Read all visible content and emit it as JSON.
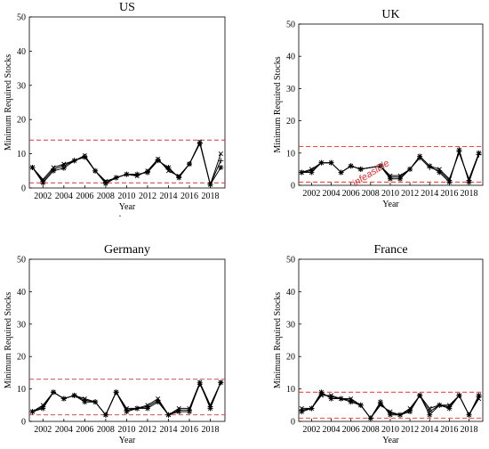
{
  "figure": {
    "stray_mark": "."
  },
  "chart_data": [
    {
      "type": "line",
      "title": "US",
      "xlabel": "Year",
      "ylabel": "Minimum Required Stocks",
      "xlim": [
        2000.7,
        2019.4
      ],
      "ylim": [
        0,
        50
      ],
      "xticks": [
        "2002",
        "2004",
        "2006",
        "2008",
        "2010",
        "2012",
        "2014",
        "2016",
        "2018"
      ],
      "yticks": [
        "0",
        "10",
        "20",
        "30",
        "40",
        "50"
      ],
      "x": [
        2001,
        2002,
        2003,
        2004,
        2005,
        2006,
        2007,
        2008,
        2009,
        2010,
        2011,
        2012,
        2013,
        2014,
        2015,
        2016,
        2017,
        2018,
        2019
      ],
      "series": [
        {
          "values": [
            6,
            1.5,
            5,
            5.8,
            8,
            9,
            5,
            1.3,
            3,
            4,
            4,
            4.5,
            8,
            6,
            3,
            7,
            13,
            1,
            6
          ]
        },
        {
          "values": [
            6,
            2.5,
            6,
            7,
            8,
            9.5,
            5,
            2,
            3,
            4,
            3.5,
            5,
            8.5,
            5,
            3.5,
            7,
            13.5,
            1,
            10
          ]
        },
        {
          "values": [
            6,
            2,
            5.5,
            6.5,
            8,
            9.2,
            5,
            1.6,
            3,
            4,
            3.8,
            4.8,
            8.2,
            5.5,
            3.2,
            7,
            13.2,
            1,
            8
          ]
        }
      ],
      "reference_lines": [
        14,
        1.5
      ],
      "annotations": [],
      "colors": {
        "series": "#000000",
        "reference": "#e03030"
      }
    },
    {
      "type": "line",
      "title": "UK",
      "xlabel": "Year",
      "ylabel": "Minimum Required Stocks",
      "xlim": [
        2000.7,
        2019.4
      ],
      "ylim": [
        0,
        50
      ],
      "xticks": [
        "2002",
        "2004",
        "2006",
        "2008",
        "2010",
        "2012",
        "2014",
        "2016",
        "2018"
      ],
      "yticks": [
        "0",
        "10",
        "20",
        "30",
        "40",
        "50"
      ],
      "x": [
        2001,
        2002,
        2003,
        2004,
        2005,
        2006,
        2007,
        2009,
        2010,
        2011,
        2012,
        2013,
        2014,
        2015,
        2016,
        2017,
        2018,
        2019
      ],
      "series": [
        {
          "values": [
            4,
            4,
            7,
            7,
            4,
            6,
            5,
            6,
            2,
            2,
            5,
            9,
            6,
            4,
            1,
            11,
            1,
            10
          ]
        },
        {
          "values": [
            4,
            5,
            7,
            7,
            4,
            6,
            5,
            6,
            3,
            3,
            5,
            9,
            6,
            5,
            2,
            10,
            2,
            10
          ]
        },
        {
          "values": [
            4,
            4.5,
            7,
            7,
            4,
            6,
            5,
            6,
            2.5,
            2.5,
            5,
            8.5,
            5.5,
            4.5,
            1.5,
            10.5,
            1.5,
            9.5
          ]
        }
      ],
      "reference_lines": [
        12,
        1
      ],
      "annotations": [
        {
          "text": "infeasible",
          "x": 2008.2,
          "y": 3
        }
      ],
      "colors": {
        "series": "#000000",
        "reference": "#e03030"
      }
    },
    {
      "type": "line",
      "title": "Germany",
      "xlabel": "Year",
      "ylabel": "Minimum Required Stocks",
      "xlim": [
        2000.7,
        2019.4
      ],
      "ylim": [
        0,
        50
      ],
      "xticks": [
        "2002",
        "2004",
        "2006",
        "2008",
        "2010",
        "2012",
        "2014",
        "2016",
        "2018"
      ],
      "yticks": [
        "0",
        "10",
        "20",
        "30",
        "40",
        "50"
      ],
      "x": [
        2001,
        2002,
        2003,
        2004,
        2005,
        2006,
        2007,
        2008,
        2009,
        2010,
        2011,
        2012,
        2013,
        2014,
        2015,
        2016,
        2017,
        2018,
        2019
      ],
      "series": [
        {
          "values": [
            3,
            4,
            9,
            7,
            8,
            6,
            6,
            2,
            9,
            3,
            4,
            4,
            6,
            2,
            3,
            3,
            12,
            4,
            12
          ]
        },
        {
          "values": [
            3,
            5,
            9,
            7,
            8,
            7,
            6,
            2,
            9,
            4,
            4,
            5,
            7,
            2,
            4,
            4,
            12,
            5,
            12
          ]
        },
        {
          "values": [
            3,
            4.5,
            9,
            7,
            8,
            6.5,
            6,
            2,
            9,
            3.5,
            4,
            4.5,
            6.5,
            2,
            3.5,
            3.5,
            11.5,
            4.5,
            12
          ]
        }
      ],
      "reference_lines": [
        13,
        2
      ],
      "annotations": [],
      "colors": {
        "series": "#000000",
        "reference": "#e03030"
      }
    },
    {
      "type": "line",
      "title": "France",
      "xlabel": "Year",
      "ylabel": "Minimum Required Stocks",
      "xlim": [
        2000.7,
        2019.4
      ],
      "ylim": [
        0,
        50
      ],
      "xticks": [
        "2002",
        "2004",
        "2006",
        "2008",
        "2010",
        "2012",
        "2014",
        "2016",
        "2018"
      ],
      "yticks": [
        "0",
        "10",
        "20",
        "30",
        "40",
        "50"
      ],
      "x": [
        2001,
        2002,
        2003,
        2004,
        2005,
        2006,
        2007,
        2008,
        2009,
        2010,
        2011,
        2012,
        2013,
        2014,
        2015,
        2016,
        2017,
        2018,
        2019
      ],
      "series": [
        {
          "values": [
            3,
            4,
            9,
            7,
            7,
            6,
            5,
            1,
            6,
            2,
            2,
            3,
            8,
            2,
            5,
            4,
            8,
            2,
            8
          ]
        },
        {
          "values": [
            4,
            4,
            8,
            8,
            7,
            7,
            5,
            1,
            5,
            3,
            2,
            4,
            8,
            4,
            5,
            5,
            8,
            2,
            7
          ]
        },
        {
          "values": [
            3.5,
            4,
            8.5,
            7.5,
            7,
            6.5,
            5,
            1,
            5.5,
            2.5,
            2,
            3.5,
            8,
            3,
            5,
            4.5,
            8,
            2,
            7.5
          ]
        }
      ],
      "reference_lines": [
        9,
        1
      ],
      "annotations": [],
      "colors": {
        "series": "#000000",
        "reference": "#e03030"
      }
    }
  ]
}
